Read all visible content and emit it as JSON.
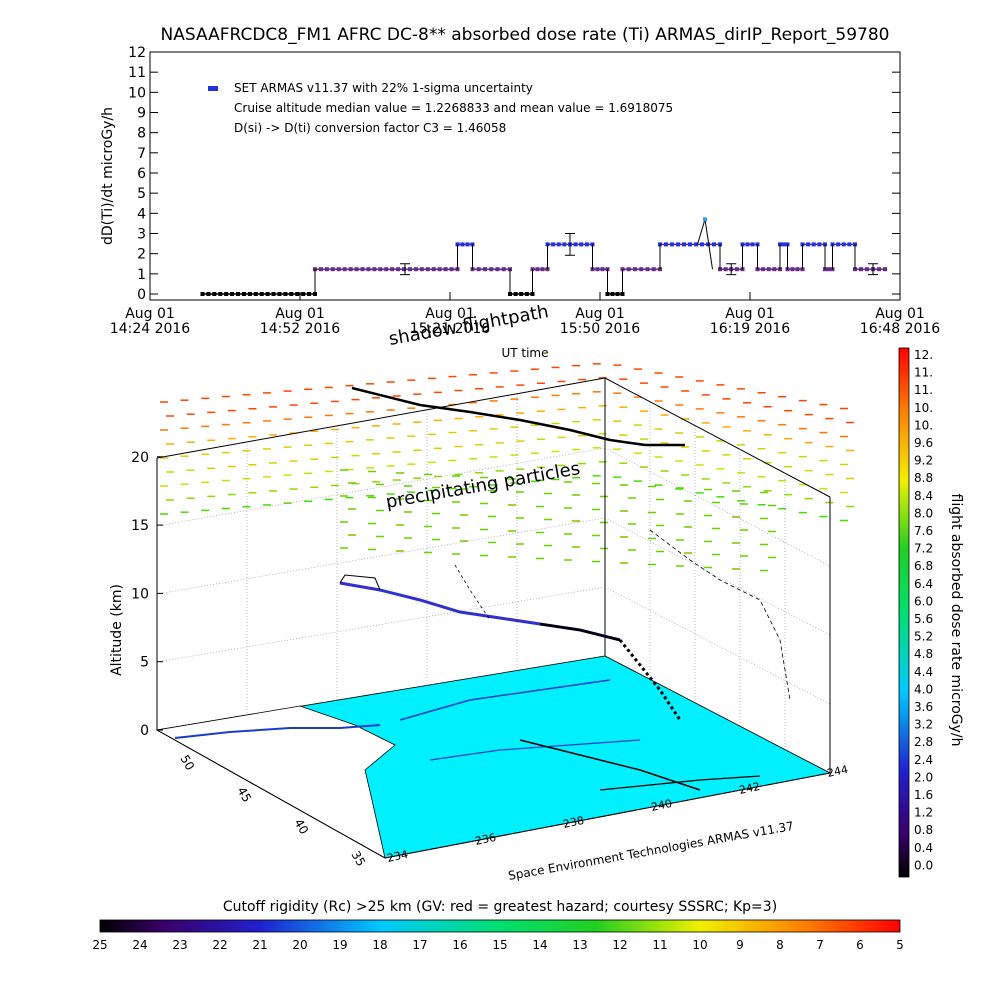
{
  "title": "NASAAFRCDC8_FM1 AFRC DC-8** absorbed dose rate (Ti) ARMAS_dirIP_Report_59780",
  "chart_data": [
    {
      "type": "scatter",
      "ylabel": "dD(Ti)/dt microGy/h",
      "xlabel": "UT time",
      "ylim": [
        0,
        12
      ],
      "yticks": [
        "0",
        "1",
        "2",
        "3",
        "4",
        "5",
        "6",
        "7",
        "8",
        "9",
        "10",
        "11",
        "12"
      ],
      "xticks": [
        {
          "line1": "Aug 01",
          "line2": "14:24 2016"
        },
        {
          "line1": "Aug 01",
          "line2": "14:52 2016"
        },
        {
          "line1": "Aug 01",
          "line2": "15:21 2016"
        },
        {
          "line1": "Aug 01",
          "line2": "15:50 2016"
        },
        {
          "line1": "Aug 01",
          "line2": "16:19 2016"
        },
        {
          "line1": "Aug 01",
          "line2": "16:48 2016"
        }
      ],
      "legend": {
        "series_label": "SET ARMAS v11.37 with 22% 1-sigma uncertainty",
        "line2": "Cruise altitude median value = 1.2268833 and mean value = 1.6918075",
        "line3": "D(si) -> D(ti) conversion factor C3 = 1.46058",
        "marker_color": "#2233dd"
      },
      "segments": [
        {
          "x0": 0.07,
          "x1": 0.22,
          "y": 0
        },
        {
          "x0": 0.22,
          "x1": 0.41,
          "y": 1.23
        },
        {
          "x0": 0.41,
          "x1": 0.43,
          "y": 2.46
        },
        {
          "x0": 0.43,
          "x1": 0.48,
          "y": 1.23
        },
        {
          "x0": 0.48,
          "x1": 0.51,
          "y": 0
        },
        {
          "x0": 0.51,
          "x1": 0.53,
          "y": 1.23
        },
        {
          "x0": 0.53,
          "x1": 0.59,
          "y": 2.46
        },
        {
          "x0": 0.59,
          "x1": 0.61,
          "y": 1.23
        },
        {
          "x0": 0.61,
          "x1": 0.63,
          "y": 0
        },
        {
          "x0": 0.63,
          "x1": 0.68,
          "y": 1.23
        },
        {
          "x0": 0.68,
          "x1": 0.76,
          "y": 2.46
        },
        {
          "x0": 0.76,
          "x1": 0.79,
          "y": 1.23
        },
        {
          "x0": 0.79,
          "x1": 0.81,
          "y": 2.46
        },
        {
          "x0": 0.81,
          "x1": 0.84,
          "y": 1.23
        },
        {
          "x0": 0.84,
          "x1": 0.85,
          "y": 2.46
        },
        {
          "x0": 0.85,
          "x1": 0.87,
          "y": 1.23
        },
        {
          "x0": 0.87,
          "x1": 0.9,
          "y": 2.46
        },
        {
          "x0": 0.9,
          "x1": 0.91,
          "y": 1.23
        },
        {
          "x0": 0.91,
          "x1": 0.94,
          "y": 2.46
        },
        {
          "x0": 0.94,
          "x1": 0.98,
          "y": 1.23
        }
      ],
      "peak": {
        "x": 0.74,
        "y": 3.7
      },
      "error_bars": [
        {
          "x": 0.34,
          "y": 1.23,
          "err": 0.27
        },
        {
          "x": 0.56,
          "y": 2.46,
          "err": 0.54
        },
        {
          "x": 0.775,
          "y": 1.23,
          "err": 0.27
        },
        {
          "x": 0.964,
          "y": 1.23,
          "err": 0.27
        }
      ]
    },
    {
      "type": "3d-flightpath",
      "zlabel": "Altitude (km)",
      "zticks": [
        "0",
        "5",
        "10",
        "15",
        "20"
      ],
      "lat_ticks": [
        "50",
        "45",
        "40",
        "35"
      ],
      "lon_ticks": [
        "234",
        "236",
        "238",
        "240",
        "242",
        "244"
      ],
      "footer_label": "Space Environment Technologies ARMAS v11.37",
      "annotations": {
        "top": "shadow flightpath",
        "middle": "precipitating particles"
      }
    },
    {
      "type": "colorbar",
      "label": "flight absorbed dose rate microGy/h",
      "ticks": [
        "12.",
        "11.",
        "11.",
        "10.",
        "10.",
        "9.6",
        "9.2",
        "8.8",
        "8.4",
        "8.0",
        "7.6",
        "7.2",
        "6.8",
        "6.4",
        "6.0",
        "5.6",
        "5.2",
        "4.8",
        "4.4",
        "4.0",
        "3.6",
        "3.2",
        "2.8",
        "2.4",
        "2.0",
        "1.6",
        "1.2",
        "0.8",
        "0.4",
        "0.0"
      ]
    },
    {
      "type": "colorbar",
      "label": "Cutoff rigidity (Rc) >25 km (GV: red = greatest hazard; courtesy SSSRC; Kp=3)",
      "ticks": [
        "25",
        "24",
        "23",
        "22",
        "21",
        "20",
        "19",
        "18",
        "17",
        "16",
        "15",
        "14",
        "13",
        "12",
        "11",
        "10",
        "9",
        "8",
        "7",
        "6",
        "5"
      ]
    }
  ]
}
